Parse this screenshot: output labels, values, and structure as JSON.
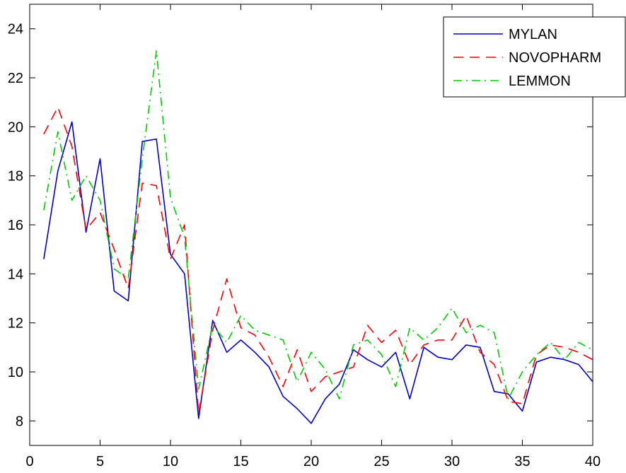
{
  "chart_data": {
    "type": "line",
    "title": "",
    "xlabel": "",
    "ylabel": "",
    "xlim": [
      0,
      40
    ],
    "ylim": [
      7,
      25
    ],
    "xticks": [
      0,
      5,
      10,
      15,
      20,
      25,
      30,
      35,
      40
    ],
    "yticks": [
      8,
      10,
      12,
      14,
      16,
      18,
      20,
      22,
      24
    ],
    "grid": false,
    "legend_position": "top-right",
    "x": [
      1,
      2,
      3,
      4,
      5,
      6,
      7,
      8,
      9,
      10,
      11,
      12,
      13,
      14,
      15,
      16,
      17,
      18,
      19,
      20,
      21,
      22,
      23,
      24,
      25,
      26,
      27,
      28,
      29,
      30,
      31,
      32,
      33,
      34,
      35,
      36,
      37,
      38,
      39,
      40
    ],
    "series": [
      {
        "name": "MYLAN",
        "color": "#0000cc",
        "dash": "solid",
        "values": [
          14.6,
          18.2,
          20.2,
          15.7,
          18.7,
          13.3,
          12.9,
          19.4,
          19.5,
          14.8,
          14.0,
          8.1,
          12.1,
          10.8,
          11.3,
          10.8,
          10.2,
          9.0,
          8.5,
          7.9,
          8.9,
          9.5,
          10.9,
          10.5,
          10.2,
          10.8,
          8.9,
          11.0,
          10.6,
          10.5,
          11.1,
          11.0,
          9.2,
          9.1,
          8.4,
          10.4,
          10.6,
          10.5,
          10.3,
          9.6
        ]
      },
      {
        "name": "NOVOPHARM",
        "color": "#ff0000",
        "dash": "dashed",
        "values": [
          19.7,
          20.8,
          19.2,
          15.8,
          16.5,
          15.0,
          13.4,
          17.7,
          17.6,
          14.6,
          16.0,
          8.3,
          11.7,
          13.8,
          11.8,
          11.5,
          10.6,
          9.4,
          10.9,
          9.2,
          9.8,
          10.0,
          10.2,
          11.9,
          11.2,
          11.7,
          10.3,
          11.1,
          11.3,
          11.3,
          12.3,
          10.8,
          10.3,
          8.8,
          8.7,
          10.7,
          11.1,
          11.0,
          10.8,
          10.5
        ]
      },
      {
        "name": "LEMMON",
        "color": "#00cc00",
        "dash": "dashdot",
        "values": [
          16.6,
          19.8,
          17.0,
          18.0,
          17.0,
          14.2,
          13.8,
          18.7,
          23.1,
          17.1,
          15.5,
          9.3,
          11.9,
          11.2,
          12.3,
          11.7,
          11.5,
          11.3,
          9.6,
          10.8,
          10.1,
          8.9,
          11.1,
          11.3,
          10.7,
          9.4,
          11.8,
          11.3,
          11.8,
          12.6,
          11.6,
          11.9,
          11.6,
          8.9,
          10.0,
          10.7,
          11.2,
          10.5,
          11.2,
          10.9
        ]
      }
    ]
  }
}
